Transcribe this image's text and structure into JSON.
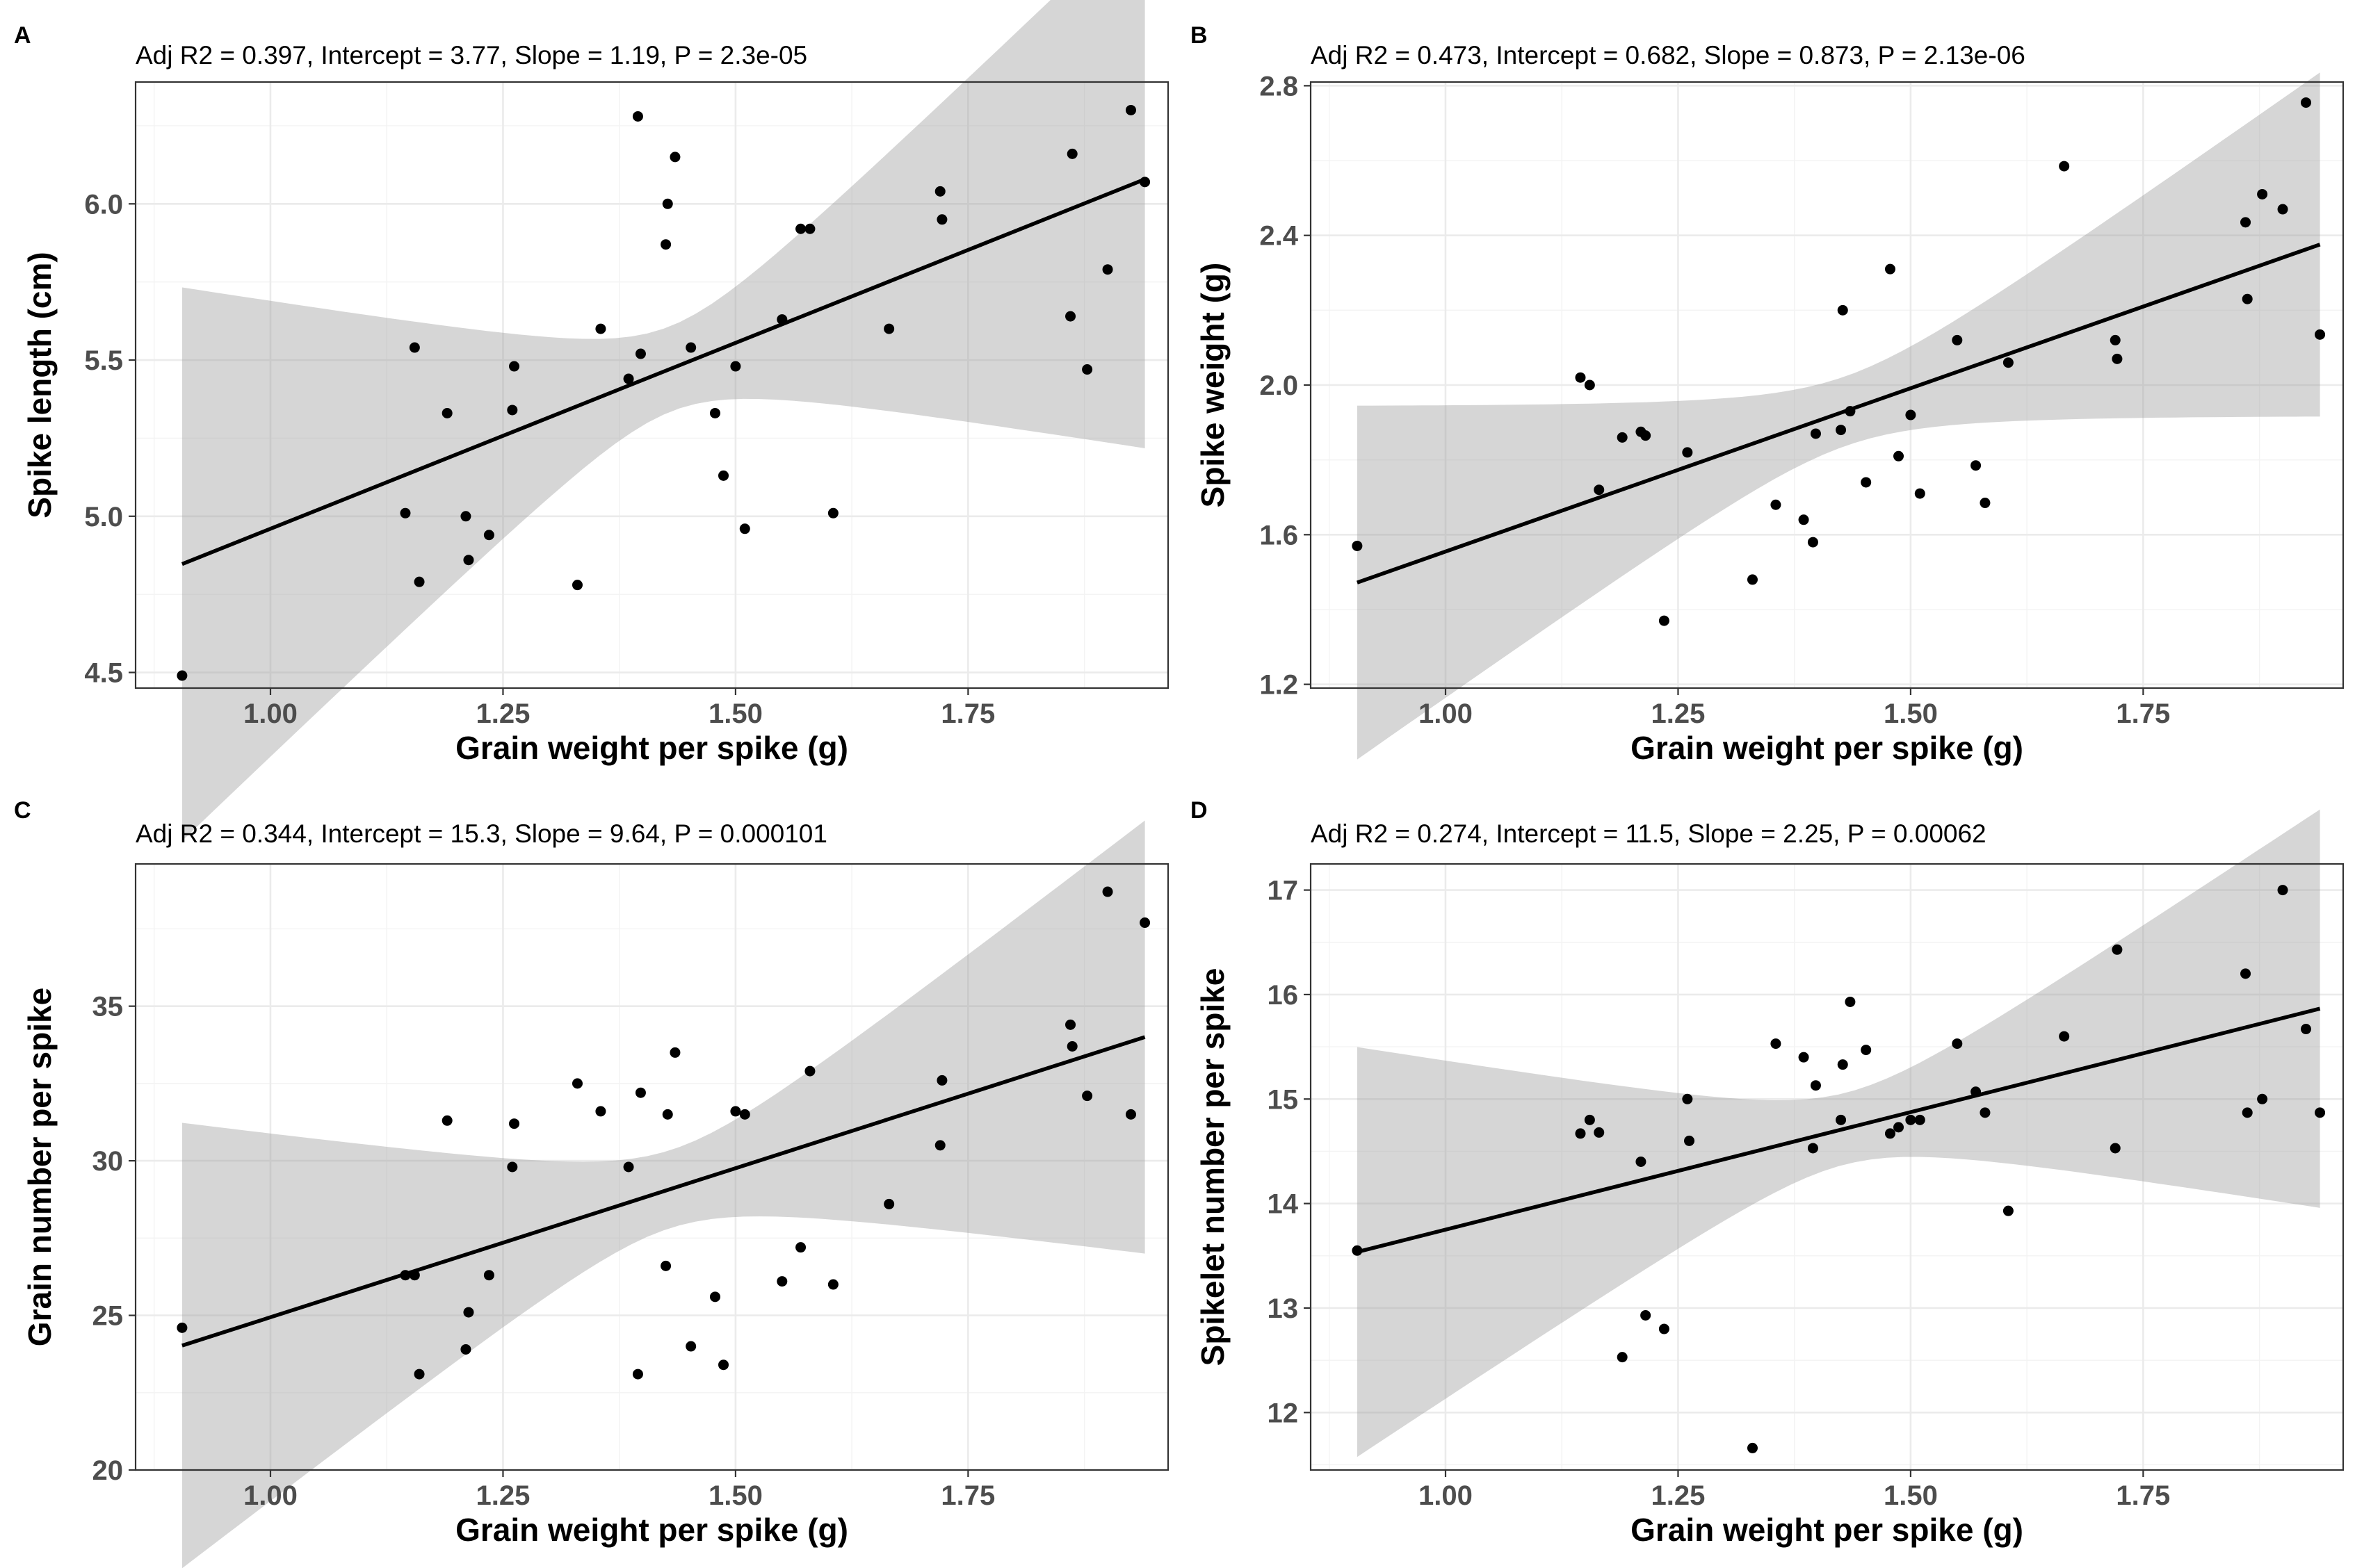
{
  "colors": {
    "points": "#000000",
    "fit_line": "#000000",
    "ci_band": "#999999",
    "grid": "#ebebeb",
    "border": "#333333",
    "tick_text": "#4d4d4d"
  },
  "chart_data": [
    {
      "type": "scatter",
      "panel": "A",
      "title": "Adj R2 = 0.397, Intercept = 3.77,  Slope = 1.19,  P = 2.3e-05",
      "xlabel": "Grain weight per spike (g)",
      "ylabel": "Spike length (cm)",
      "xlim": [
        0.855,
        1.965
      ],
      "ylim": [
        4.45,
        6.39
      ],
      "xticks": [
        1.0,
        1.25,
        1.5,
        1.75
      ],
      "xtick_labels": [
        "1.00",
        "1.25",
        "1.50",
        "1.75"
      ],
      "yticks": [
        4.5,
        5.0,
        5.5,
        6.0
      ],
      "ytick_labels": [
        "4.5",
        "5.0",
        "5.5",
        "6.0"
      ],
      "grid": true,
      "fit": {
        "intercept": 3.77,
        "slope": 1.19,
        "x_range": [
          0.905,
          1.94
        ],
        "ci_low_end": [
          4.48,
          5.79
        ],
        "ci_high_end": [
          5.13,
          6.29
        ],
        "ci_pivot_x": 1.43
      },
      "points": [
        {
          "x": 0.905,
          "y": 4.49
        },
        {
          "x": 1.145,
          "y": 5.01
        },
        {
          "x": 1.155,
          "y": 5.54
        },
        {
          "x": 1.16,
          "y": 4.79
        },
        {
          "x": 1.19,
          "y": 5.33
        },
        {
          "x": 1.21,
          "y": 5.0
        },
        {
          "x": 1.213,
          "y": 4.86
        },
        {
          "x": 1.235,
          "y": 4.94
        },
        {
          "x": 1.26,
          "y": 5.34
        },
        {
          "x": 1.262,
          "y": 5.48
        },
        {
          "x": 1.33,
          "y": 4.78
        },
        {
          "x": 1.355,
          "y": 5.6
        },
        {
          "x": 1.385,
          "y": 5.44
        },
        {
          "x": 1.395,
          "y": 6.28
        },
        {
          "x": 1.398,
          "y": 5.52
        },
        {
          "x": 1.425,
          "y": 5.87
        },
        {
          "x": 1.427,
          "y": 6.0
        },
        {
          "x": 1.435,
          "y": 6.15
        },
        {
          "x": 1.452,
          "y": 5.54
        },
        {
          "x": 1.478,
          "y": 5.33
        },
        {
          "x": 1.487,
          "y": 5.13
        },
        {
          "x": 1.5,
          "y": 5.48
        },
        {
          "x": 1.51,
          "y": 4.96
        },
        {
          "x": 1.55,
          "y": 5.63
        },
        {
          "x": 1.57,
          "y": 5.92
        },
        {
          "x": 1.58,
          "y": 5.92
        },
        {
          "x": 1.605,
          "y": 5.01
        },
        {
          "x": 1.665,
          "y": 5.6
        },
        {
          "x": 1.72,
          "y": 6.04
        },
        {
          "x": 1.722,
          "y": 5.95
        },
        {
          "x": 1.86,
          "y": 5.64
        },
        {
          "x": 1.862,
          "y": 6.16
        },
        {
          "x": 1.878,
          "y": 5.47
        },
        {
          "x": 1.9,
          "y": 5.79
        },
        {
          "x": 1.925,
          "y": 6.3
        },
        {
          "x": 1.94,
          "y": 6.07
        }
      ]
    },
    {
      "type": "scatter",
      "panel": "B",
      "title": "Adj R2 = 0.473, Intercept = 0.682,  Slope = 0.873,  P = 2.13e-06",
      "xlabel": "Grain weight per spike (g)",
      "ylabel": "Spike weight (g)",
      "xlim": [
        0.855,
        1.965
      ],
      "ylim": [
        1.19,
        2.81
      ],
      "xticks": [
        1.0,
        1.25,
        1.5,
        1.75
      ],
      "xtick_labels": [
        "1.00",
        "1.25",
        "1.50",
        "1.75"
      ],
      "yticks": [
        1.2,
        1.6,
        2.0,
        2.4,
        2.8
      ],
      "ytick_labels": [
        "1.2",
        "1.6",
        "2.0",
        "2.4",
        "2.8"
      ],
      "grid": true,
      "fit": {
        "intercept": 0.682,
        "slope": 0.873,
        "x_range": [
          0.905,
          1.94
        ],
        "ci_low_end": [
          1.245,
          2.18
        ],
        "ci_high_end": [
          1.65,
          2.52
        ],
        "ci_pivot_x": 1.43
      },
      "points": [
        {
          "x": 0.905,
          "y": 1.57
        },
        {
          "x": 1.145,
          "y": 2.02
        },
        {
          "x": 1.155,
          "y": 2.0
        },
        {
          "x": 1.165,
          "y": 1.72
        },
        {
          "x": 1.19,
          "y": 1.86
        },
        {
          "x": 1.21,
          "y": 1.875
        },
        {
          "x": 1.215,
          "y": 1.865
        },
        {
          "x": 1.235,
          "y": 1.37
        },
        {
          "x": 1.26,
          "y": 1.82
        },
        {
          "x": 1.33,
          "y": 1.48
        },
        {
          "x": 1.355,
          "y": 1.68
        },
        {
          "x": 1.385,
          "y": 1.64
        },
        {
          "x": 1.395,
          "y": 1.58
        },
        {
          "x": 1.398,
          "y": 1.87
        },
        {
          "x": 1.425,
          "y": 1.88
        },
        {
          "x": 1.427,
          "y": 2.2
        },
        {
          "x": 1.435,
          "y": 1.93
        },
        {
          "x": 1.452,
          "y": 1.74
        },
        {
          "x": 1.478,
          "y": 2.31
        },
        {
          "x": 1.487,
          "y": 1.81
        },
        {
          "x": 1.5,
          "y": 1.92
        },
        {
          "x": 1.51,
          "y": 1.71
        },
        {
          "x": 1.55,
          "y": 2.12
        },
        {
          "x": 1.57,
          "y": 1.785
        },
        {
          "x": 1.58,
          "y": 1.685
        },
        {
          "x": 1.605,
          "y": 2.06
        },
        {
          "x": 1.665,
          "y": 2.585
        },
        {
          "x": 1.72,
          "y": 2.12
        },
        {
          "x": 1.722,
          "y": 2.07
        },
        {
          "x": 1.86,
          "y": 2.435
        },
        {
          "x": 1.862,
          "y": 2.23
        },
        {
          "x": 1.878,
          "y": 2.51
        },
        {
          "x": 1.9,
          "y": 2.47
        },
        {
          "x": 1.925,
          "y": 2.755
        },
        {
          "x": 1.94,
          "y": 2.135
        }
      ]
    },
    {
      "type": "scatter",
      "panel": "C",
      "title": "Adj R2 = 0.344, Intercept = 15.3,  Slope = 9.64,  P = 0.000101",
      "xlabel": "Grain weight per spike (g)",
      "ylabel": "Grain number per spike",
      "xlim": [
        0.855,
        1.965
      ],
      "ylim": [
        20,
        39.6
      ],
      "xticks": [
        1.0,
        1.25,
        1.5,
        1.75
      ],
      "xtick_labels": [
        "1.00",
        "1.25",
        "1.50",
        "1.75"
      ],
      "yticks": [
        20,
        25,
        30,
        35
      ],
      "ytick_labels": [
        "20",
        "25",
        "30",
        "35"
      ],
      "grid": true,
      "fit": {
        "intercept": 15.3,
        "slope": 9.64,
        "x_range": [
          0.905,
          1.94
        ],
        "ci_low_end": [
          20.9,
          31.5
        ],
        "ci_high_end": [
          26.6,
          36.1
        ],
        "ci_pivot_x": 1.43
      },
      "points": [
        {
          "x": 0.905,
          "y": 24.6
        },
        {
          "x": 1.145,
          "y": 26.3
        },
        {
          "x": 1.155,
          "y": 26.3
        },
        {
          "x": 1.16,
          "y": 23.1
        },
        {
          "x": 1.19,
          "y": 31.3
        },
        {
          "x": 1.21,
          "y": 23.9
        },
        {
          "x": 1.213,
          "y": 25.1
        },
        {
          "x": 1.235,
          "y": 26.3
        },
        {
          "x": 1.26,
          "y": 29.8
        },
        {
          "x": 1.262,
          "y": 31.2
        },
        {
          "x": 1.33,
          "y": 32.5
        },
        {
          "x": 1.355,
          "y": 31.6
        },
        {
          "x": 1.385,
          "y": 29.8
        },
        {
          "x": 1.395,
          "y": 23.1
        },
        {
          "x": 1.398,
          "y": 32.2
        },
        {
          "x": 1.425,
          "y": 26.6
        },
        {
          "x": 1.427,
          "y": 31.5
        },
        {
          "x": 1.435,
          "y": 33.5
        },
        {
          "x": 1.452,
          "y": 24.0
        },
        {
          "x": 1.478,
          "y": 25.6
        },
        {
          "x": 1.487,
          "y": 23.4
        },
        {
          "x": 1.5,
          "y": 31.6
        },
        {
          "x": 1.51,
          "y": 31.5
        },
        {
          "x": 1.55,
          "y": 26.1
        },
        {
          "x": 1.57,
          "y": 27.2
        },
        {
          "x": 1.58,
          "y": 32.9
        },
        {
          "x": 1.605,
          "y": 26.0
        },
        {
          "x": 1.665,
          "y": 28.6
        },
        {
          "x": 1.72,
          "y": 30.5
        },
        {
          "x": 1.722,
          "y": 32.6
        },
        {
          "x": 1.86,
          "y": 34.4
        },
        {
          "x": 1.862,
          "y": 33.7
        },
        {
          "x": 1.878,
          "y": 32.1
        },
        {
          "x": 1.9,
          "y": 38.7
        },
        {
          "x": 1.925,
          "y": 31.5
        },
        {
          "x": 1.94,
          "y": 37.7
        }
      ]
    },
    {
      "type": "scatter",
      "panel": "D",
      "title": "Adj R2 = 0.274, Intercept = 11.5,  Slope = 2.25,  P = 0.00062",
      "xlabel": "Grain weight per spike (g)",
      "ylabel": "Spikelet number per spike",
      "xlim": [
        0.855,
        1.965
      ],
      "ylim": [
        11.45,
        17.25
      ],
      "xticks": [
        1.0,
        1.25,
        1.5,
        1.75
      ],
      "xtick_labels": [
        "1.00",
        "1.25",
        "1.50",
        "1.75"
      ],
      "yticks": [
        12,
        13,
        14,
        15,
        16,
        17
      ],
      "ytick_labels": [
        "12",
        "13",
        "14",
        "15",
        "16",
        "17"
      ],
      "grid": true,
      "fit": {
        "intercept": 11.5,
        "slope": 2.25,
        "x_range": [
          0.905,
          1.94
        ],
        "ci_low_end": [
          12.7,
          15.2
        ],
        "ci_high_end": [
          14.25,
          16.45
        ],
        "ci_pivot_x": 1.43
      },
      "points": [
        {
          "x": 0.905,
          "y": 13.55
        },
        {
          "x": 1.145,
          "y": 14.67
        },
        {
          "x": 1.155,
          "y": 14.8
        },
        {
          "x": 1.165,
          "y": 14.68
        },
        {
          "x": 1.19,
          "y": 12.53
        },
        {
          "x": 1.21,
          "y": 14.4
        },
        {
          "x": 1.215,
          "y": 12.93
        },
        {
          "x": 1.235,
          "y": 12.8
        },
        {
          "x": 1.26,
          "y": 15.0
        },
        {
          "x": 1.262,
          "y": 14.6
        },
        {
          "x": 1.33,
          "y": 11.66
        },
        {
          "x": 1.355,
          "y": 15.53
        },
        {
          "x": 1.385,
          "y": 15.4
        },
        {
          "x": 1.395,
          "y": 14.53
        },
        {
          "x": 1.398,
          "y": 15.13
        },
        {
          "x": 1.425,
          "y": 14.8
        },
        {
          "x": 1.427,
          "y": 15.33
        },
        {
          "x": 1.435,
          "y": 15.93
        },
        {
          "x": 1.452,
          "y": 15.47
        },
        {
          "x": 1.478,
          "y": 14.67
        },
        {
          "x": 1.487,
          "y": 14.73
        },
        {
          "x": 1.5,
          "y": 14.8
        },
        {
          "x": 1.51,
          "y": 14.8
        },
        {
          "x": 1.55,
          "y": 15.53
        },
        {
          "x": 1.57,
          "y": 15.07
        },
        {
          "x": 1.58,
          "y": 14.87
        },
        {
          "x": 1.605,
          "y": 13.93
        },
        {
          "x": 1.665,
          "y": 15.6
        },
        {
          "x": 1.72,
          "y": 14.53
        },
        {
          "x": 1.722,
          "y": 16.43
        },
        {
          "x": 1.86,
          "y": 16.2
        },
        {
          "x": 1.862,
          "y": 14.87
        },
        {
          "x": 1.878,
          "y": 15.0
        },
        {
          "x": 1.9,
          "y": 17.0
        },
        {
          "x": 1.925,
          "y": 15.67
        },
        {
          "x": 1.94,
          "y": 14.87
        }
      ]
    }
  ]
}
